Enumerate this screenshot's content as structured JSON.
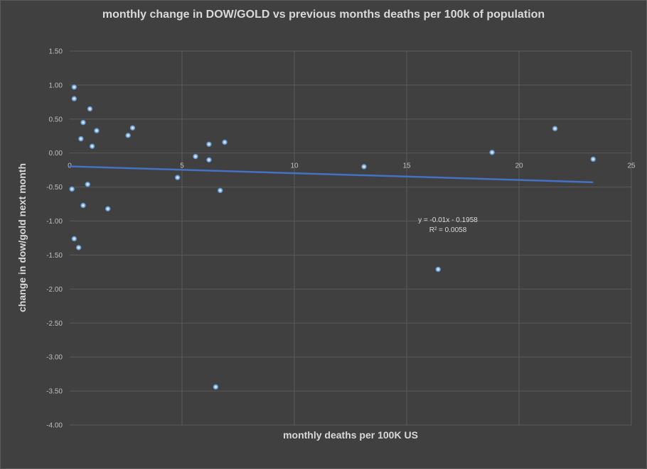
{
  "chart_data": {
    "type": "scatter",
    "title": "monthly change in DOW/GOLD vs previous months deaths per 100k of population",
    "xlabel": "monthly deaths per 100K US",
    "ylabel": "change in dow/gold next month",
    "xlim": [
      0,
      25
    ],
    "ylim": [
      -4.0,
      1.5
    ],
    "x_ticks": [
      0,
      5,
      10,
      15,
      20,
      25
    ],
    "y_ticks": [
      1.5,
      1.0,
      0.5,
      0.0,
      -0.5,
      -1.0,
      -1.5,
      -2.0,
      -2.5,
      -3.0,
      -3.5,
      -4.0
    ],
    "x_tick_labels": [
      "0",
      "5",
      "10",
      "15",
      "20",
      "25"
    ],
    "y_tick_labels": [
      "1.50",
      "1.00",
      "0.50",
      "0.00",
      "-0.50",
      "-1.00",
      "-1.50",
      "-2.00",
      "-2.50",
      "-3.00",
      "-3.50",
      "-4.00"
    ],
    "grid": true,
    "legend": "none",
    "marker_color": "#5b9bd5",
    "trendline_color": "#4472c4",
    "series": [
      {
        "points": [
          {
            "x": 0.2,
            "y": 0.97
          },
          {
            "x": 0.2,
            "y": 0.8
          },
          {
            "x": 0.9,
            "y": 0.65
          },
          {
            "x": 0.6,
            "y": 0.45
          },
          {
            "x": 1.2,
            "y": 0.33
          },
          {
            "x": 0.5,
            "y": 0.21
          },
          {
            "x": 1.0,
            "y": 0.1
          },
          {
            "x": 2.8,
            "y": 0.37
          },
          {
            "x": 2.6,
            "y": 0.26
          },
          {
            "x": 0.1,
            "y": -0.53
          },
          {
            "x": 0.8,
            "y": -0.46
          },
          {
            "x": 0.6,
            "y": -0.77
          },
          {
            "x": 1.7,
            "y": -0.82
          },
          {
            "x": 0.2,
            "y": -1.26
          },
          {
            "x": 0.4,
            "y": -1.39
          },
          {
            "x": 4.8,
            "y": -0.36
          },
          {
            "x": 5.6,
            "y": -0.05
          },
          {
            "x": 6.2,
            "y": 0.13
          },
          {
            "x": 6.2,
            "y": -0.1
          },
          {
            "x": 6.9,
            "y": 0.16
          },
          {
            "x": 6.7,
            "y": -0.55
          },
          {
            "x": 6.5,
            "y": -3.44
          },
          {
            "x": 13.1,
            "y": -0.2
          },
          {
            "x": 16.4,
            "y": -1.71
          },
          {
            "x": 18.8,
            "y": 0.01
          },
          {
            "x": 21.6,
            "y": 0.36
          },
          {
            "x": 23.3,
            "y": -0.09
          }
        ]
      }
    ],
    "trendline": {
      "slope": -0.01,
      "intercept": -0.1958,
      "x_range": [
        0,
        23.3
      ],
      "equation": "y = -0.01x - 0.1958",
      "r_squared": "R² = 0.0058"
    }
  }
}
